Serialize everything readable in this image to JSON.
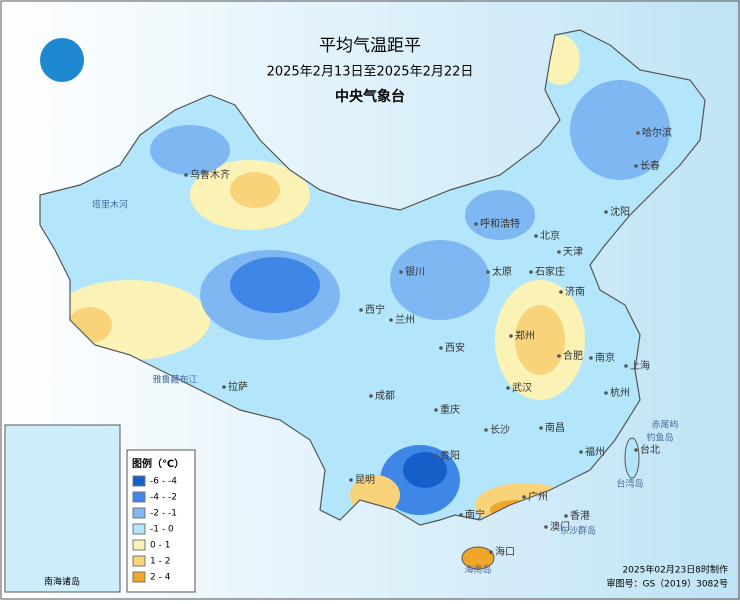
{
  "header": {
    "title": "平均气温距平",
    "subtitle": "2025年2月13日至2025年2月22日",
    "agency": "中央气象台"
  },
  "legend": {
    "title": "图例（℃）",
    "items": [
      {
        "label": "-6 - -4",
        "color": "#1560c8"
      },
      {
        "label": "-4 - -2",
        "color": "#3f86e6"
      },
      {
        "label": "-2 - -1",
        "color": "#7fb7f2"
      },
      {
        "label": "-1 - 0",
        "color": "#b3e6fb"
      },
      {
        "label": "0 - 1",
        "color": "#fbf2b6"
      },
      {
        "label": "1 - 2",
        "color": "#f8d37a"
      },
      {
        "label": "2 - 4",
        "color": "#f1a62a"
      }
    ]
  },
  "cities": [
    "哈尔滨",
    "长春",
    "沈阳",
    "呼和浩特",
    "北京",
    "天津",
    "银川",
    "太原",
    "石家庄",
    "济南",
    "西宁",
    "兰州",
    "郑州",
    "西安",
    "合肥",
    "南京",
    "上海",
    "拉萨",
    "成都",
    "武汉",
    "杭州",
    "重庆",
    "长沙",
    "南昌",
    "福州",
    "台北",
    "贵阳",
    "昆明",
    "南宁",
    "广州",
    "香港",
    "澳门",
    "海口",
    "乌鲁木齐"
  ],
  "places": [
    "塔里木河",
    "雅鲁藏布江",
    "钓鱼岛",
    "赤尾屿",
    "台湾岛",
    "东沙群岛",
    "海南岛"
  ],
  "inset": {
    "label": "南海诸岛"
  },
  "footer": {
    "made": "2025年02月23日8时制作",
    "approval": "审图号：GS（2019）3082号"
  }
}
